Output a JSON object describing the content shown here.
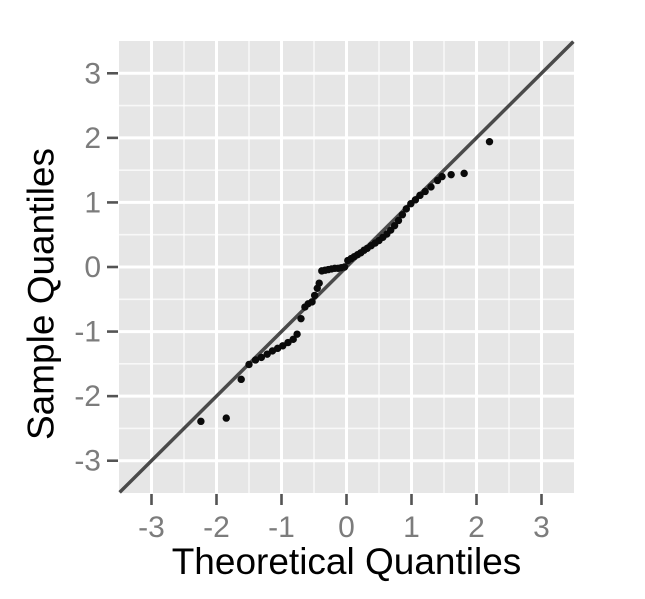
{
  "chart_data": {
    "type": "scatter",
    "subtype": "qq-plot",
    "title": "",
    "xlabel": "Theoretical Quantiles",
    "ylabel": "Sample Quantiles",
    "xlim": [
      -3.5,
      3.5
    ],
    "ylim": [
      -3.5,
      3.5
    ],
    "x_ticks": [
      -3,
      -2,
      -1,
      0,
      1,
      2,
      3
    ],
    "y_ticks": [
      -3,
      -2,
      -1,
      0,
      1,
      2,
      3
    ],
    "minor_gridlines": [
      -2.5,
      -1.5,
      -0.5,
      0.5,
      1.5,
      2.5
    ],
    "grid": true,
    "legend_position": "none",
    "reference_line": {
      "slope": 1,
      "intercept": 0,
      "x_start": -3.49,
      "x_end": 3.49
    },
    "points": [
      [
        -2.24,
        -2.39
      ],
      [
        -1.85,
        -2.34
      ],
      [
        -1.62,
        -1.74
      ],
      [
        -1.5,
        -1.51
      ],
      [
        -1.4,
        -1.44
      ],
      [
        -1.31,
        -1.4
      ],
      [
        -1.22,
        -1.35
      ],
      [
        -1.14,
        -1.3
      ],
      [
        -1.06,
        -1.26
      ],
      [
        -0.98,
        -1.22
      ],
      [
        -0.9,
        -1.17
      ],
      [
        -0.82,
        -1.12
      ],
      [
        -0.76,
        -1.04
      ],
      [
        -0.7,
        -0.8
      ],
      [
        -0.64,
        -0.62
      ],
      [
        -0.59,
        -0.57
      ],
      [
        -0.53,
        -0.54
      ],
      [
        -0.49,
        -0.44
      ],
      [
        -0.45,
        -0.33
      ],
      [
        -0.42,
        -0.25
      ],
      [
        -0.38,
        -0.06
      ],
      [
        -0.33,
        -0.05
      ],
      [
        -0.28,
        -0.04
      ],
      [
        -0.23,
        -0.03
      ],
      [
        -0.18,
        -0.02
      ],
      [
        -0.13,
        -0.02
      ],
      [
        -0.08,
        -0.01
      ],
      [
        -0.03,
        0.0
      ],
      [
        0.02,
        0.1
      ],
      [
        0.07,
        0.13
      ],
      [
        0.12,
        0.16
      ],
      [
        0.17,
        0.19
      ],
      [
        0.22,
        0.22
      ],
      [
        0.27,
        0.26
      ],
      [
        0.32,
        0.29
      ],
      [
        0.38,
        0.33
      ],
      [
        0.44,
        0.37
      ],
      [
        0.5,
        0.41
      ],
      [
        0.56,
        0.46
      ],
      [
        0.62,
        0.51
      ],
      [
        0.68,
        0.57
      ],
      [
        0.74,
        0.64
      ],
      [
        0.8,
        0.72
      ],
      [
        0.86,
        0.81
      ],
      [
        0.92,
        0.9
      ],
      [
        0.99,
        0.98
      ],
      [
        1.06,
        1.04
      ],
      [
        1.13,
        1.11
      ],
      [
        1.21,
        1.17
      ],
      [
        1.3,
        1.24
      ],
      [
        1.4,
        1.34
      ],
      [
        1.47,
        1.4
      ],
      [
        1.61,
        1.43
      ],
      [
        1.81,
        1.45
      ],
      [
        2.2,
        1.94
      ]
    ]
  },
  "style": {
    "background": "#FFFFFF",
    "panel_bg": "#E6E6E6",
    "grid_major_color": "#FFFFFF",
    "grid_minor_color": "#FFFFFF",
    "point_color": "#0A0A0A",
    "reference_line_color": "#4A4A4A",
    "tick_color": "#545454",
    "tick_label_color": "#7C7C7C",
    "axis_title_color": "#000000"
  }
}
